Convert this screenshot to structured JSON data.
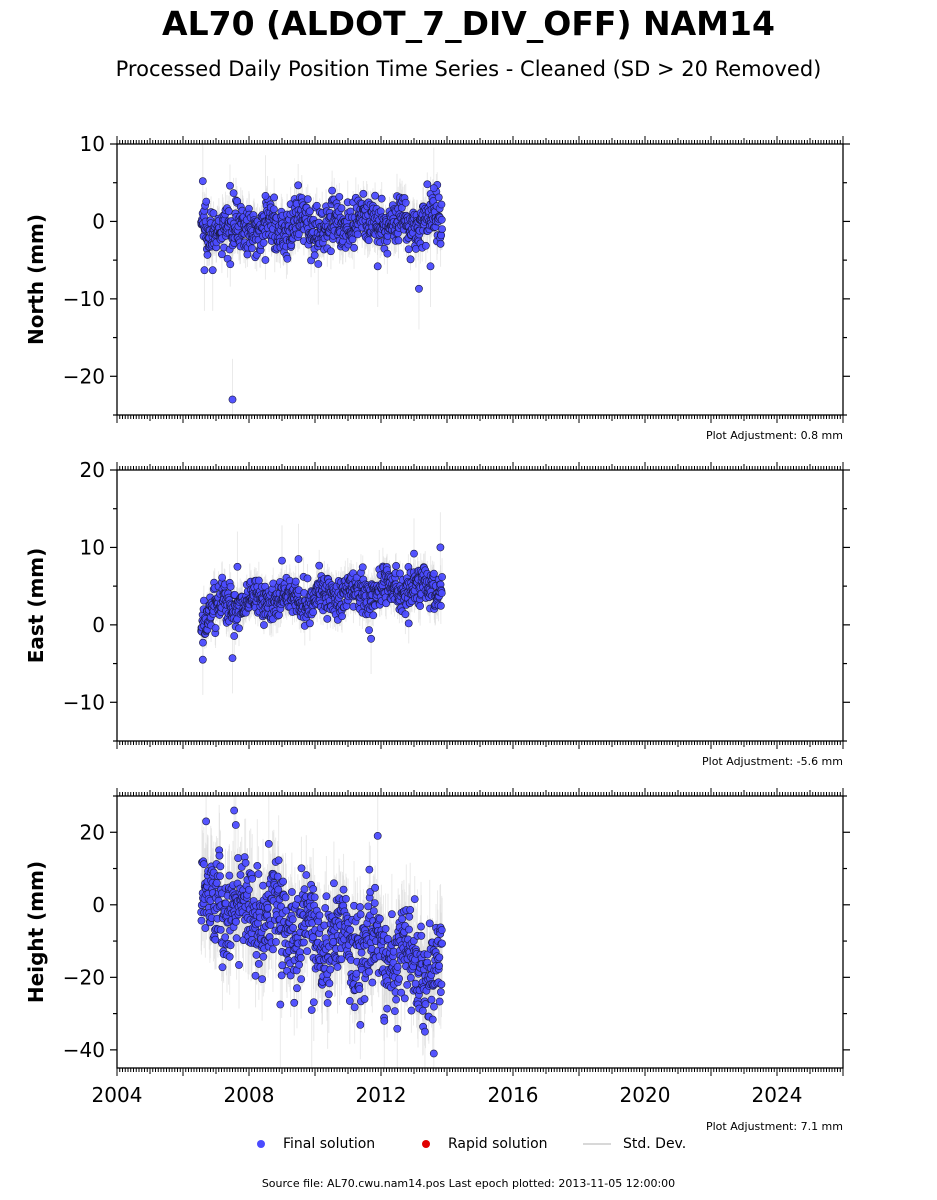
{
  "title": "AL70 (ALDOT_7_DIV_OFF) NAM14",
  "subtitle": "Processed Daily Position Time Series - Cleaned (SD > 20 Removed)",
  "legend": {
    "final": "Final solution",
    "rapid": "Rapid solution",
    "std": "Std. Dev."
  },
  "source": "Source file: AL70.cwu.nam14.pos  Last epoch plotted: 2013-11-05 12:00:00",
  "colors": {
    "final": "#4b4bff",
    "rapid": "#e00000",
    "std": "#d8d8d8"
  },
  "chart_data": [
    {
      "type": "scatter",
      "name": "north",
      "ylabel": "North (mm)",
      "xlim": [
        2004,
        2026
      ],
      "ylim": [
        -25,
        10
      ],
      "yticks": [
        -20,
        -10,
        0,
        10
      ],
      "xticks": [
        2004,
        2008,
        2012,
        2016,
        2020,
        2024
      ],
      "adjustment": "Plot Adjustment: 0.8 mm",
      "data_span": [
        2006.55,
        2013.85
      ],
      "trend": [
        [
          2006.55,
          -1.0
        ],
        [
          2013.85,
          0.0
        ]
      ],
      "typical_scatter": 1.5,
      "outliers": [
        [
          2006.6,
          5.2
        ],
        [
          2006.65,
          -6.3
        ],
        [
          2006.9,
          -6.3
        ],
        [
          2007.5,
          -23.0
        ],
        [
          2008.5,
          3.3
        ],
        [
          2010.1,
          -5.5
        ],
        [
          2011.9,
          -5.8
        ],
        [
          2013.15,
          -8.7
        ],
        [
          2013.6,
          4.3
        ],
        [
          2013.5,
          -5.8
        ]
      ]
    },
    {
      "type": "scatter",
      "name": "east",
      "ylabel": "East (mm)",
      "xlim": [
        2004,
        2026
      ],
      "ylim": [
        -15,
        20
      ],
      "yticks": [
        -10,
        0,
        10,
        20
      ],
      "xticks": [
        2004,
        2008,
        2012,
        2016,
        2020,
        2024
      ],
      "adjustment": "Plot Adjustment: -5.6 mm",
      "data_span": [
        2006.55,
        2013.85
      ],
      "trend": [
        [
          2006.55,
          0.0
        ],
        [
          2006.9,
          2.5
        ],
        [
          2013.85,
          5.0
        ]
      ],
      "typical_scatter": 1.3,
      "outliers": [
        [
          2006.6,
          -4.5
        ],
        [
          2007.5,
          -4.3
        ],
        [
          2007.65,
          7.5
        ],
        [
          2009.0,
          8.3
        ],
        [
          2009.5,
          8.5
        ],
        [
          2011.7,
          -1.8
        ],
        [
          2013.0,
          9.2
        ],
        [
          2013.8,
          10.0
        ]
      ]
    },
    {
      "type": "scatter",
      "name": "height",
      "ylabel": "Height (mm)",
      "xlim": [
        2004,
        2026
      ],
      "ylim": [
        -45,
        30
      ],
      "yticks": [
        -40,
        -20,
        0,
        20
      ],
      "xticks": [
        2004,
        2008,
        2012,
        2016,
        2020,
        2024
      ],
      "xticklabels": [
        "2004",
        "2008",
        "2012",
        "2016",
        "2020",
        "2024"
      ],
      "adjustment": "Plot Adjustment: 7.1 mm",
      "data_span": [
        2006.55,
        2013.85
      ],
      "trend": [
        [
          2006.55,
          2.0
        ],
        [
          2013.85,
          -18.0
        ]
      ],
      "typical_scatter": 6.5,
      "outliers": [
        [
          2006.7,
          23.0
        ],
        [
          2007.55,
          26.0
        ],
        [
          2007.6,
          22.0
        ],
        [
          2008.6,
          16.8
        ],
        [
          2011.9,
          19.0
        ],
        [
          2012.1,
          -32.0
        ],
        [
          2013.6,
          -41.0
        ],
        [
          2008.95,
          -27.5
        ],
        [
          2009.9,
          -29.0
        ]
      ]
    }
  ]
}
